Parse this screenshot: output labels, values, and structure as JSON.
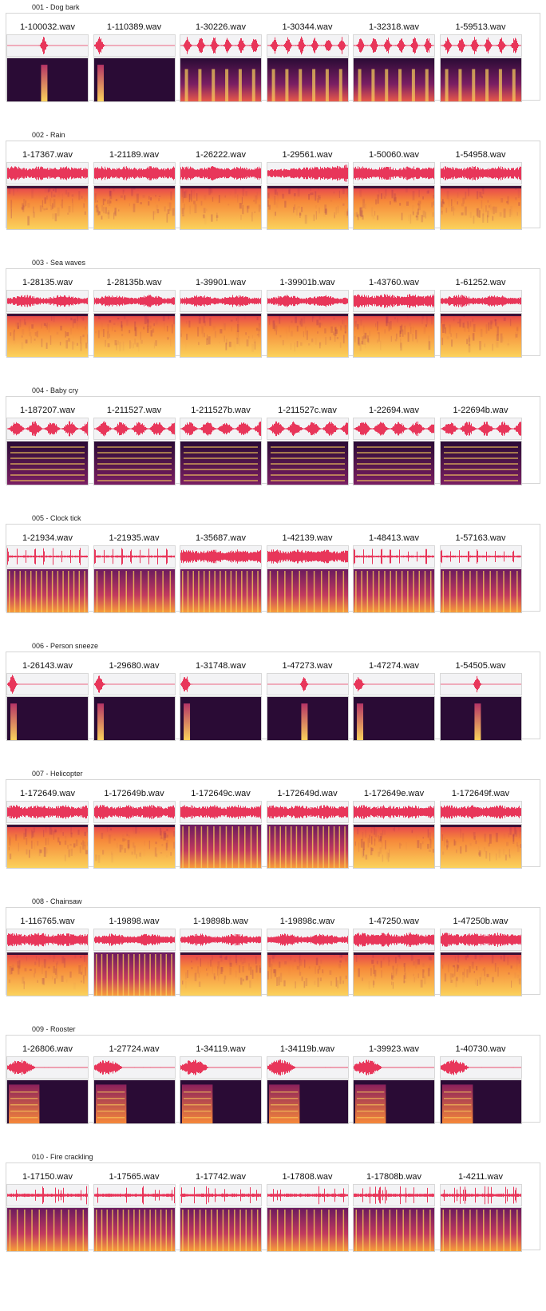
{
  "categories": [
    {
      "title": "001 - Dog bark",
      "clips": [
        {
          "name": "1-100032.wav",
          "wave": "burst-mid",
          "spec": "burst-mid"
        },
        {
          "name": "1-110389.wav",
          "wave": "burst-start",
          "spec": "burst-start"
        },
        {
          "name": "1-30226.wav",
          "wave": "periodic",
          "spec": "periodic"
        },
        {
          "name": "1-30344.wav",
          "wave": "periodic",
          "spec": "periodic"
        },
        {
          "name": "1-32318.wav",
          "wave": "periodic",
          "spec": "periodic"
        },
        {
          "name": "1-59513.wav",
          "wave": "periodic",
          "spec": "periodic"
        }
      ]
    },
    {
      "title": "002 - Rain",
      "clips": [
        {
          "name": "1-17367.wav",
          "wave": "noise",
          "spec": "bright-noise"
        },
        {
          "name": "1-21189.wav",
          "wave": "noise",
          "spec": "bright-noise"
        },
        {
          "name": "1-26222.wav",
          "wave": "noise",
          "spec": "bright-noise"
        },
        {
          "name": "1-29561.wav",
          "wave": "noise-rise",
          "spec": "bright-noise"
        },
        {
          "name": "1-50060.wav",
          "wave": "noise",
          "spec": "bright-noise"
        },
        {
          "name": "1-54958.wav",
          "wave": "noise",
          "spec": "bright-noise"
        }
      ]
    },
    {
      "title": "003 - Sea waves",
      "clips": [
        {
          "name": "1-28135.wav",
          "wave": "swell",
          "spec": "bright-noise"
        },
        {
          "name": "1-28135b.wav",
          "wave": "swell",
          "spec": "bright-noise"
        },
        {
          "name": "1-39901.wav",
          "wave": "swell",
          "spec": "bright-noise"
        },
        {
          "name": "1-39901b.wav",
          "wave": "swell",
          "spec": "bright-noise"
        },
        {
          "name": "1-43760.wav",
          "wave": "noise",
          "spec": "bright-noise"
        },
        {
          "name": "1-61252.wav",
          "wave": "swell",
          "spec": "bright-noise"
        }
      ]
    },
    {
      "title": "004 - Baby cry",
      "clips": [
        {
          "name": "1-187207.wav",
          "wave": "blobs",
          "spec": "harmonics"
        },
        {
          "name": "1-211527.wav",
          "wave": "blobs",
          "spec": "harmonics"
        },
        {
          "name": "1-211527b.wav",
          "wave": "blobs",
          "spec": "harmonics"
        },
        {
          "name": "1-211527c.wav",
          "wave": "blobs",
          "spec": "harmonics"
        },
        {
          "name": "1-22694.wav",
          "wave": "blobs",
          "spec": "harmonics"
        },
        {
          "name": "1-22694b.wav",
          "wave": "blobs",
          "spec": "harmonics"
        }
      ]
    },
    {
      "title": "005 - Clock tick",
      "clips": [
        {
          "name": "1-21934.wav",
          "wave": "ticks",
          "spec": "ticks"
        },
        {
          "name": "1-21935.wav",
          "wave": "ticks",
          "spec": "ticks"
        },
        {
          "name": "1-35687.wav",
          "wave": "noise",
          "spec": "ticks"
        },
        {
          "name": "1-42139.wav",
          "wave": "noise",
          "spec": "ticks"
        },
        {
          "name": "1-48413.wav",
          "wave": "ticks",
          "spec": "ticks"
        },
        {
          "name": "1-57163.wav",
          "wave": "ticks",
          "spec": "ticks"
        }
      ]
    },
    {
      "title": "006 - Person sneeze",
      "clips": [
        {
          "name": "1-26143.wav",
          "wave": "burst-start",
          "spec": "burst-start"
        },
        {
          "name": "1-29680.wav",
          "wave": "burst-start",
          "spec": "burst-start"
        },
        {
          "name": "1-31748.wav",
          "wave": "burst-start",
          "spec": "burst-start"
        },
        {
          "name": "1-47273.wav",
          "wave": "burst-mid",
          "spec": "burst-mid"
        },
        {
          "name": "1-47274.wav",
          "wave": "burst-start",
          "spec": "burst-start"
        },
        {
          "name": "1-54505.wav",
          "wave": "burst-mid",
          "spec": "burst-mid"
        }
      ]
    },
    {
      "title": "007 - Helicopter",
      "clips": [
        {
          "name": "1-172649.wav",
          "wave": "noise",
          "spec": "bright-noise"
        },
        {
          "name": "1-172649b.wav",
          "wave": "noise",
          "spec": "bright-noise"
        },
        {
          "name": "1-172649c.wav",
          "wave": "noise",
          "spec": "ticks"
        },
        {
          "name": "1-172649d.wav",
          "wave": "noise",
          "spec": "ticks"
        },
        {
          "name": "1-172649e.wav",
          "wave": "noise",
          "spec": "bright-noise"
        },
        {
          "name": "1-172649f.wav",
          "wave": "noise",
          "spec": "bright-noise"
        }
      ]
    },
    {
      "title": "008 - Chainsaw",
      "clips": [
        {
          "name": "1-116765.wav",
          "wave": "noise",
          "spec": "bright-noise"
        },
        {
          "name": "1-19898.wav",
          "wave": "swell",
          "spec": "ticks"
        },
        {
          "name": "1-19898b.wav",
          "wave": "swell",
          "spec": "bright-noise"
        },
        {
          "name": "1-19898c.wav",
          "wave": "swell",
          "spec": "bright-noise"
        },
        {
          "name": "1-47250.wav",
          "wave": "noise",
          "spec": "bright-noise"
        },
        {
          "name": "1-47250b.wav",
          "wave": "noise",
          "spec": "bright-noise"
        }
      ]
    },
    {
      "title": "009 - Rooster",
      "clips": [
        {
          "name": "1-26806.wav",
          "wave": "crow",
          "spec": "crow"
        },
        {
          "name": "1-27724.wav",
          "wave": "crow",
          "spec": "crow"
        },
        {
          "name": "1-34119.wav",
          "wave": "crow",
          "spec": "crow"
        },
        {
          "name": "1-34119b.wav",
          "wave": "crow",
          "spec": "crow"
        },
        {
          "name": "1-39923.wav",
          "wave": "crow",
          "spec": "crow"
        },
        {
          "name": "1-40730.wav",
          "wave": "crow",
          "spec": "crow"
        }
      ]
    },
    {
      "title": "010 - Fire crackling",
      "clips": [
        {
          "name": "1-17150.wav",
          "wave": "crackle",
          "spec": "ticks"
        },
        {
          "name": "1-17565.wav",
          "wave": "crackle",
          "spec": "ticks"
        },
        {
          "name": "1-17742.wav",
          "wave": "crackle",
          "spec": "ticks"
        },
        {
          "name": "1-17808.wav",
          "wave": "crackle",
          "spec": "ticks"
        },
        {
          "name": "1-17808b.wav",
          "wave": "crackle",
          "spec": "ticks"
        },
        {
          "name": "1-4211.wav",
          "wave": "crackle",
          "spec": "ticks"
        }
      ]
    }
  ],
  "colors": {
    "waveform": "#e8365a",
    "waveform_bg": "#f3f3f5",
    "spec_dark": "#2a0b35",
    "spec_mid": "#b53466",
    "spec_bright": "#fbd25b"
  }
}
